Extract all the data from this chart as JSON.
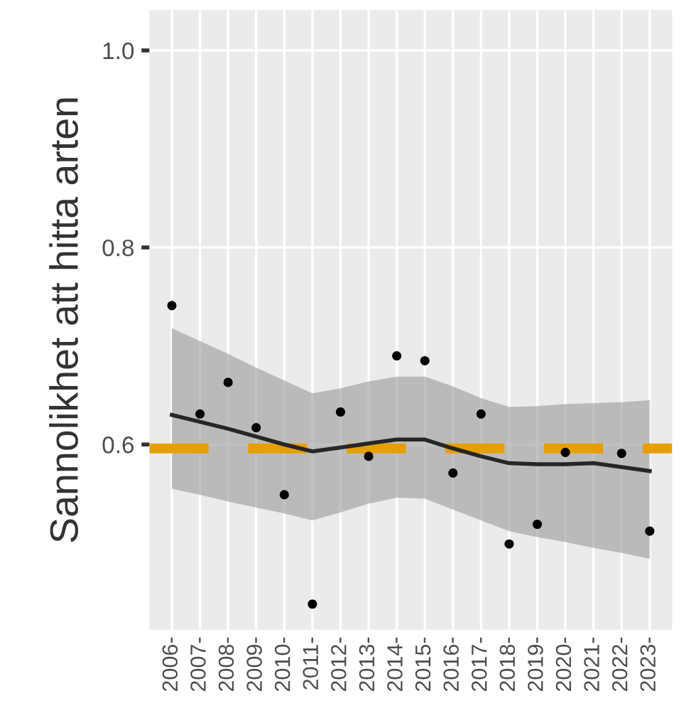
{
  "chart_data": {
    "type": "scatter",
    "ylabel": "Sannolikhet att hitta arten",
    "categories": [
      "2006-",
      "2007-",
      "2008-",
      "2009-",
      "2010-",
      "2011-",
      "2012-",
      "2013-",
      "2014-",
      "2015-",
      "2016-",
      "2017-",
      "2018-",
      "2019-",
      "2020-",
      "2021-",
      "2022-",
      "2023-"
    ],
    "series": [
      {
        "color": "#000000",
        "values": [
          0.741,
          0.631,
          0.663,
          0.617,
          0.549,
          0.438,
          0.633,
          0.588,
          0.69,
          0.685,
          0.571,
          0.631,
          0.499,
          0.519,
          0.592,
          null,
          0.591,
          0.512
        ]
      },
      {
        "type": "line",
        "color": "#262626",
        "values": [
          0.63,
          0.623,
          0.616,
          0.608,
          0.6,
          0.593,
          0.597,
          0.601,
          0.605,
          0.605,
          0.596,
          0.588,
          0.581,
          0.58,
          0.58,
          0.581,
          0.577,
          0.573
        ],
        "upper": [
          0.718,
          0.705,
          0.692,
          0.678,
          0.665,
          0.652,
          0.657,
          0.664,
          0.669,
          0.669,
          0.659,
          0.647,
          0.638,
          0.639,
          0.641,
          0.642,
          0.643,
          0.645
        ],
        "lower": [
          0.555,
          0.549,
          0.542,
          0.536,
          0.53,
          0.523,
          0.531,
          0.54,
          0.546,
          0.545,
          0.534,
          0.523,
          0.512,
          0.506,
          0.501,
          0.495,
          0.49,
          0.484
        ]
      }
    ],
    "ref_lines": [
      {
        "axis": "y",
        "value": 0.596,
        "color": "#e69f00",
        "line_style": "dashed"
      }
    ],
    "ylim": [
      0.412,
      1.041
    ],
    "yticks": [
      {
        "value": 0.6,
        "label": "0.6"
      },
      {
        "value": 0.8,
        "label": "0.8"
      },
      {
        "value": 1.0,
        "label": "1.0"
      }
    ],
    "grid": true
  }
}
